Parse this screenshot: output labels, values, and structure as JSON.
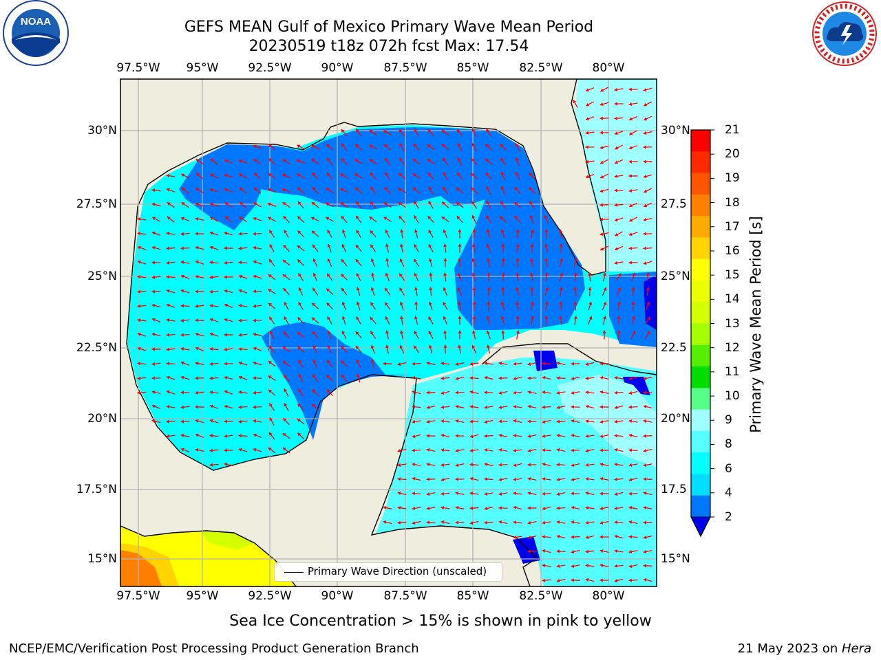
{
  "title": {
    "line1": "GEFS MEAN Gulf of Mexico Primary Wave Mean Period",
    "line2": "20230519 t18z 072h fcst   Max: 17.54"
  },
  "logos": {
    "left": "NOAA",
    "left_ring": "NATIONAL OCEANIC AND ATMOSPHERIC ADMINISTRATION · U.S. DEPARTMENT OF COMMERCE",
    "right_ring": "NATIONAL WEATHER SERVICE"
  },
  "axes": {
    "lon_labels": [
      "97.5°W",
      "95°W",
      "92.5°W",
      "90°W",
      "87.5°W",
      "85°W",
      "82.5°W",
      "80°W"
    ],
    "lat_labels_left": [
      "30°N",
      "27.5°N",
      "25°N",
      "22.5°N",
      "20°N",
      "17.5°N",
      "15°N"
    ],
    "lat_labels_right": [
      "30°N",
      "27.5",
      "25°N",
      "22.5",
      "20°N",
      "17.5",
      "15°N"
    ]
  },
  "colorbar": {
    "label": "Primary Wave Mean Period [s]",
    "ticks": [
      "21",
      "20",
      "19",
      "18",
      "17",
      "16",
      "15",
      "14",
      "13",
      "12",
      "11",
      "10",
      "9",
      "8",
      "6",
      "4",
      "2"
    ],
    "colors": [
      "#ff0000",
      "#ff2a00",
      "#ff5500",
      "#ff8000",
      "#ffaa00",
      "#ffd400",
      "#ffff00",
      "#ecff00",
      "#d4ff00",
      "#a6ff00",
      "#55ee00",
      "#00dd00",
      "#55ff88",
      "#a0ffff",
      "#55ffff",
      "#00ffff",
      "#00ddff",
      "#0077ff"
    ],
    "extend_color": "#0000ee"
  },
  "colors": {
    "land": "#efedde",
    "ocean_light": "#00ffff",
    "ocean_mid": "#55ffff",
    "ocean_pale": "#a0ffff",
    "ocean_dark": "#0077ff",
    "ocean_deep": "#0000ee",
    "arrow": "#ff0000",
    "grid": "#b3b3b3"
  },
  "legend": {
    "label": "Primary Wave Direction (unscaled)"
  },
  "note": "Sea Ice Concentration > 15% is shown in pink to yellow",
  "footer": {
    "left": "NCEP/EMC/Verification Post Processing Product Generation Branch",
    "right_date": "21 May 2023 on ",
    "right_host": "Hera"
  }
}
